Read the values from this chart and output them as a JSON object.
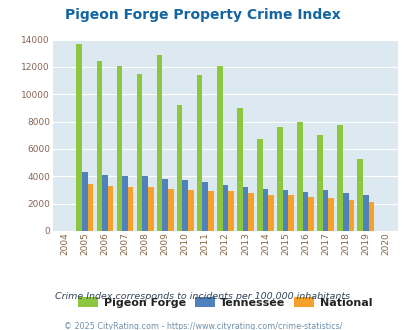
{
  "title": "Pigeon Forge Property Crime Index",
  "subtitle": "Crime Index corresponds to incidents per 100,000 inhabitants",
  "footer": "© 2025 CityRating.com - https://www.cityrating.com/crime-statistics/",
  "years": [
    2004,
    2005,
    2006,
    2007,
    2008,
    2009,
    2010,
    2011,
    2012,
    2013,
    2014,
    2015,
    2016,
    2017,
    2018,
    2019,
    2020
  ],
  "pigeon_forge": [
    0,
    13700,
    12450,
    12050,
    11450,
    12850,
    9250,
    11400,
    12050,
    9000,
    6700,
    7600,
    7950,
    7050,
    7750,
    5250,
    0
  ],
  "tennessee": [
    0,
    4300,
    4100,
    4000,
    4000,
    3800,
    3750,
    3600,
    3350,
    3200,
    3050,
    3000,
    2850,
    3000,
    2750,
    2650,
    0
  ],
  "national": [
    0,
    3450,
    3300,
    3250,
    3250,
    3050,
    2980,
    2900,
    2900,
    2750,
    2650,
    2600,
    2500,
    2450,
    2250,
    2100,
    0
  ],
  "bar_colors": {
    "pigeon_forge": "#8dc63f",
    "tennessee": "#4f81bd",
    "national": "#f6a129"
  },
  "ylim": [
    0,
    14000
  ],
  "yticks": [
    0,
    2000,
    4000,
    6000,
    8000,
    10000,
    12000,
    14000
  ],
  "bg_color": "#dce9f0",
  "title_color": "#1465a0",
  "subtitle_color": "#334455",
  "footer_color": "#7090aa",
  "legend_labels": [
    "Pigeon Forge",
    "Tennessee",
    "National"
  ],
  "xlabel_color": "#886644"
}
